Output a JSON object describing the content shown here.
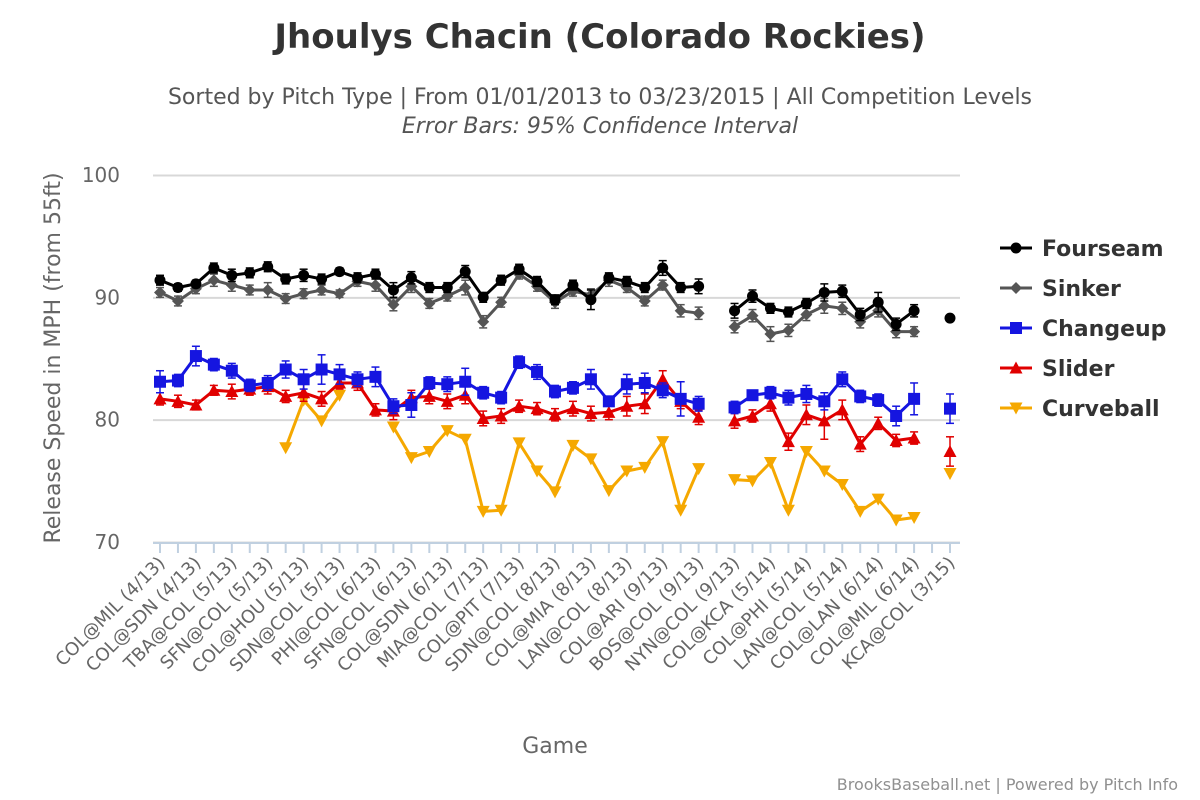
{
  "chart_data": {
    "type": "line",
    "title": "Jhoulys Chacin (Colorado Rockies)",
    "subtitle": "Sorted by Pitch Type | From 01/01/2013 to 03/23/2015 | All Competition Levels",
    "subtitle2": "Error Bars: 95% Confidence Interval",
    "xlabel": "Game",
    "ylabel": "Release Speed in MPH (from 55ft)",
    "ylim": [
      70,
      100
    ],
    "yticks": [
      70,
      80,
      90,
      100
    ],
    "grid": true,
    "legend_position": "right",
    "credit": "BrooksBaseball.net | Powered by Pitch Info",
    "x_count": 45,
    "x_labels": [
      {
        "i": 0,
        "label": "COL@MIL (4/13)"
      },
      {
        "i": 2,
        "label": "COL@SDN (4/13)"
      },
      {
        "i": 4,
        "label": "TBA@COL (5/13)"
      },
      {
        "i": 6,
        "label": "SFN@COL (5/13)"
      },
      {
        "i": 8,
        "label": "COL@HOU (5/13)"
      },
      {
        "i": 10,
        "label": "SDN@COL (5/13)"
      },
      {
        "i": 12,
        "label": "PHI@COL (6/13)"
      },
      {
        "i": 14,
        "label": "SFN@COL (6/13)"
      },
      {
        "i": 16,
        "label": "COL@SDN (6/13)"
      },
      {
        "i": 18,
        "label": "MIA@COL (7/13)"
      },
      {
        "i": 20,
        "label": "COL@PIT (7/13)"
      },
      {
        "i": 22,
        "label": "SDN@COL (8/13)"
      },
      {
        "i": 24,
        "label": "COL@MIA (8/13)"
      },
      {
        "i": 26,
        "label": "LAN@COL (8/13)"
      },
      {
        "i": 28,
        "label": "COL@ARI (9/13)"
      },
      {
        "i": 30,
        "label": "BOS@COL (9/13)"
      },
      {
        "i": 32,
        "label": "NYN@COL (9/13)"
      },
      {
        "i": 34,
        "label": "COL@KCA (5/14)"
      },
      {
        "i": 36,
        "label": "COL@PHI (5/14)"
      },
      {
        "i": 38,
        "label": "LAN@COL (5/14)"
      },
      {
        "i": 40,
        "label": "COL@LAN (6/14)"
      },
      {
        "i": 42,
        "label": "COL@MIL (6/14)"
      },
      {
        "i": 44,
        "label": "KCA@COL (3/15)"
      }
    ],
    "series": [
      {
        "name": "Fourseam",
        "color": "#000000",
        "marker": "circle",
        "values": [
          91.4,
          90.8,
          91.1,
          92.4,
          91.8,
          92.0,
          92.5,
          91.5,
          91.8,
          91.5,
          92.1,
          91.6,
          91.9,
          90.6,
          91.6,
          90.8,
          90.8,
          92.1,
          90.0,
          91.4,
          92.3,
          91.3,
          89.8,
          91.0,
          89.8,
          91.6,
          91.3,
          90.8,
          92.4,
          90.8,
          90.9,
          null,
          88.9,
          90.1,
          89.1,
          88.8,
          89.5,
          90.4,
          90.5,
          88.6,
          89.6,
          87.8,
          88.9,
          null,
          88.3
        ],
        "errors": [
          0.4,
          0.3,
          0.3,
          0.4,
          0.5,
          0.4,
          0.4,
          0.4,
          0.5,
          0.4,
          0.3,
          0.4,
          0.4,
          0.6,
          0.5,
          0.4,
          0.4,
          0.5,
          0.4,
          0.4,
          0.4,
          0.4,
          0.4,
          0.4,
          0.8,
          0.4,
          0.4,
          0.4,
          0.6,
          0.4,
          0.6,
          null,
          0.6,
          0.5,
          0.4,
          0.4,
          0.4,
          0.7,
          0.5,
          0.5,
          0.8,
          0.5,
          0.5,
          null,
          0
        ]
      },
      {
        "name": "Sinker",
        "color": "#555555",
        "marker": "diamond",
        "values": [
          90.4,
          89.7,
          90.7,
          91.4,
          91.0,
          90.6,
          90.6,
          89.9,
          90.3,
          90.6,
          90.3,
          91.3,
          91.0,
          89.4,
          90.9,
          89.5,
          90.1,
          90.8,
          88.0,
          89.6,
          91.9,
          90.9,
          89.6,
          90.5,
          90.2,
          91.4,
          90.8,
          89.7,
          91.0,
          88.9,
          88.7,
          null,
          87.6,
          88.5,
          87.0,
          87.3,
          88.6,
          89.3,
          89.1,
          88.0,
          88.9,
          87.2,
          87.2,
          null,
          null
        ],
        "errors": [
          0.4,
          0.4,
          0.4,
          0.5,
          0.5,
          0.4,
          0.6,
          0.4,
          0.4,
          0.4,
          0.3,
          0.4,
          0.5,
          0.5,
          0.5,
          0.4,
          0.4,
          0.6,
          0.5,
          0.4,
          0.4,
          0.4,
          0.5,
          0.4,
          0.5,
          0.5,
          0.4,
          0.4,
          0.4,
          0.5,
          0.5,
          null,
          0.5,
          0.5,
          0.6,
          0.5,
          0.5,
          0.6,
          0.5,
          0.5,
          0.5,
          0.5,
          0.4,
          null,
          null
        ]
      },
      {
        "name": "Changeup",
        "color": "#1515e0",
        "marker": "square",
        "values": [
          83.1,
          83.2,
          85.2,
          84.5,
          84.0,
          82.8,
          83.0,
          84.1,
          83.3,
          84.1,
          83.7,
          83.3,
          83.5,
          81.1,
          81.2,
          83.0,
          82.9,
          83.1,
          82.2,
          81.8,
          84.7,
          83.9,
          82.3,
          82.6,
          83.3,
          81.5,
          82.9,
          83.0,
          82.4,
          81.7,
          81.3,
          null,
          81.0,
          82.0,
          82.2,
          81.8,
          82.1,
          81.5,
          83.3,
          81.9,
          81.6,
          80.3,
          81.7,
          null,
          80.9
        ],
        "errors": [
          0.9,
          0.5,
          0.8,
          0.5,
          0.6,
          0.5,
          0.6,
          0.7,
          0.8,
          1.2,
          0.8,
          0.6,
          0.8,
          0.6,
          1.0,
          0.5,
          0.6,
          1.1,
          0.5,
          0.5,
          0.5,
          0.6,
          0.5,
          0.5,
          0.8,
          0.4,
          0.8,
          0.8,
          0.6,
          1.4,
          0.6,
          null,
          0.5,
          0.4,
          0.5,
          0.6,
          0.7,
          0.7,
          0.6,
          0.5,
          0.5,
          0.8,
          1.3,
          null,
          1.2
        ]
      },
      {
        "name": "Slider",
        "color": "#e00000",
        "marker": "triangle-up",
        "values": [
          81.7,
          81.5,
          81.2,
          82.4,
          82.3,
          82.5,
          82.7,
          81.9,
          82.2,
          81.7,
          83.0,
          83.0,
          80.8,
          80.7,
          81.8,
          81.9,
          81.5,
          82.0,
          80.1,
          80.3,
          81.1,
          80.9,
          80.4,
          80.9,
          80.5,
          80.6,
          81.1,
          81.3,
          83.3,
          81.5,
          80.2,
          null,
          79.9,
          80.3,
          81.3,
          78.2,
          80.4,
          79.9,
          80.8,
          78.0,
          79.7,
          78.3,
          78.5,
          null,
          77.4
        ],
        "errors": [
          0.5,
          0.5,
          0.4,
          0.4,
          0.6,
          0.5,
          0.6,
          0.5,
          0.7,
          0.6,
          0.5,
          0.6,
          0.5,
          0.7,
          0.6,
          0.6,
          0.6,
          0.7,
          0.6,
          0.6,
          0.5,
          0.5,
          0.5,
          0.6,
          0.6,
          0.6,
          0.8,
          0.8,
          0.7,
          0.6,
          0.6,
          null,
          0.6,
          0.5,
          0.6,
          0.7,
          0.8,
          1.5,
          0.8,
          0.6,
          0.5,
          0.5,
          0.5,
          null,
          1.2
        ]
      },
      {
        "name": "Curveball",
        "color": "#f5a800",
        "marker": "triangle-down",
        "values": [
          null,
          null,
          null,
          null,
          null,
          null,
          null,
          77.7,
          81.6,
          79.9,
          82.0,
          null,
          null,
          79.4,
          76.9,
          77.4,
          79.1,
          78.4,
          72.5,
          72.6,
          78.1,
          75.8,
          74.1,
          77.9,
          76.8,
          74.2,
          75.8,
          76.1,
          78.2,
          72.6,
          76.0,
          null,
          75.1,
          75.0,
          76.5,
          72.6,
          77.4,
          75.8,
          74.7,
          72.5,
          73.5,
          71.8,
          72.0,
          null,
          75.6
        ]
      }
    ]
  }
}
